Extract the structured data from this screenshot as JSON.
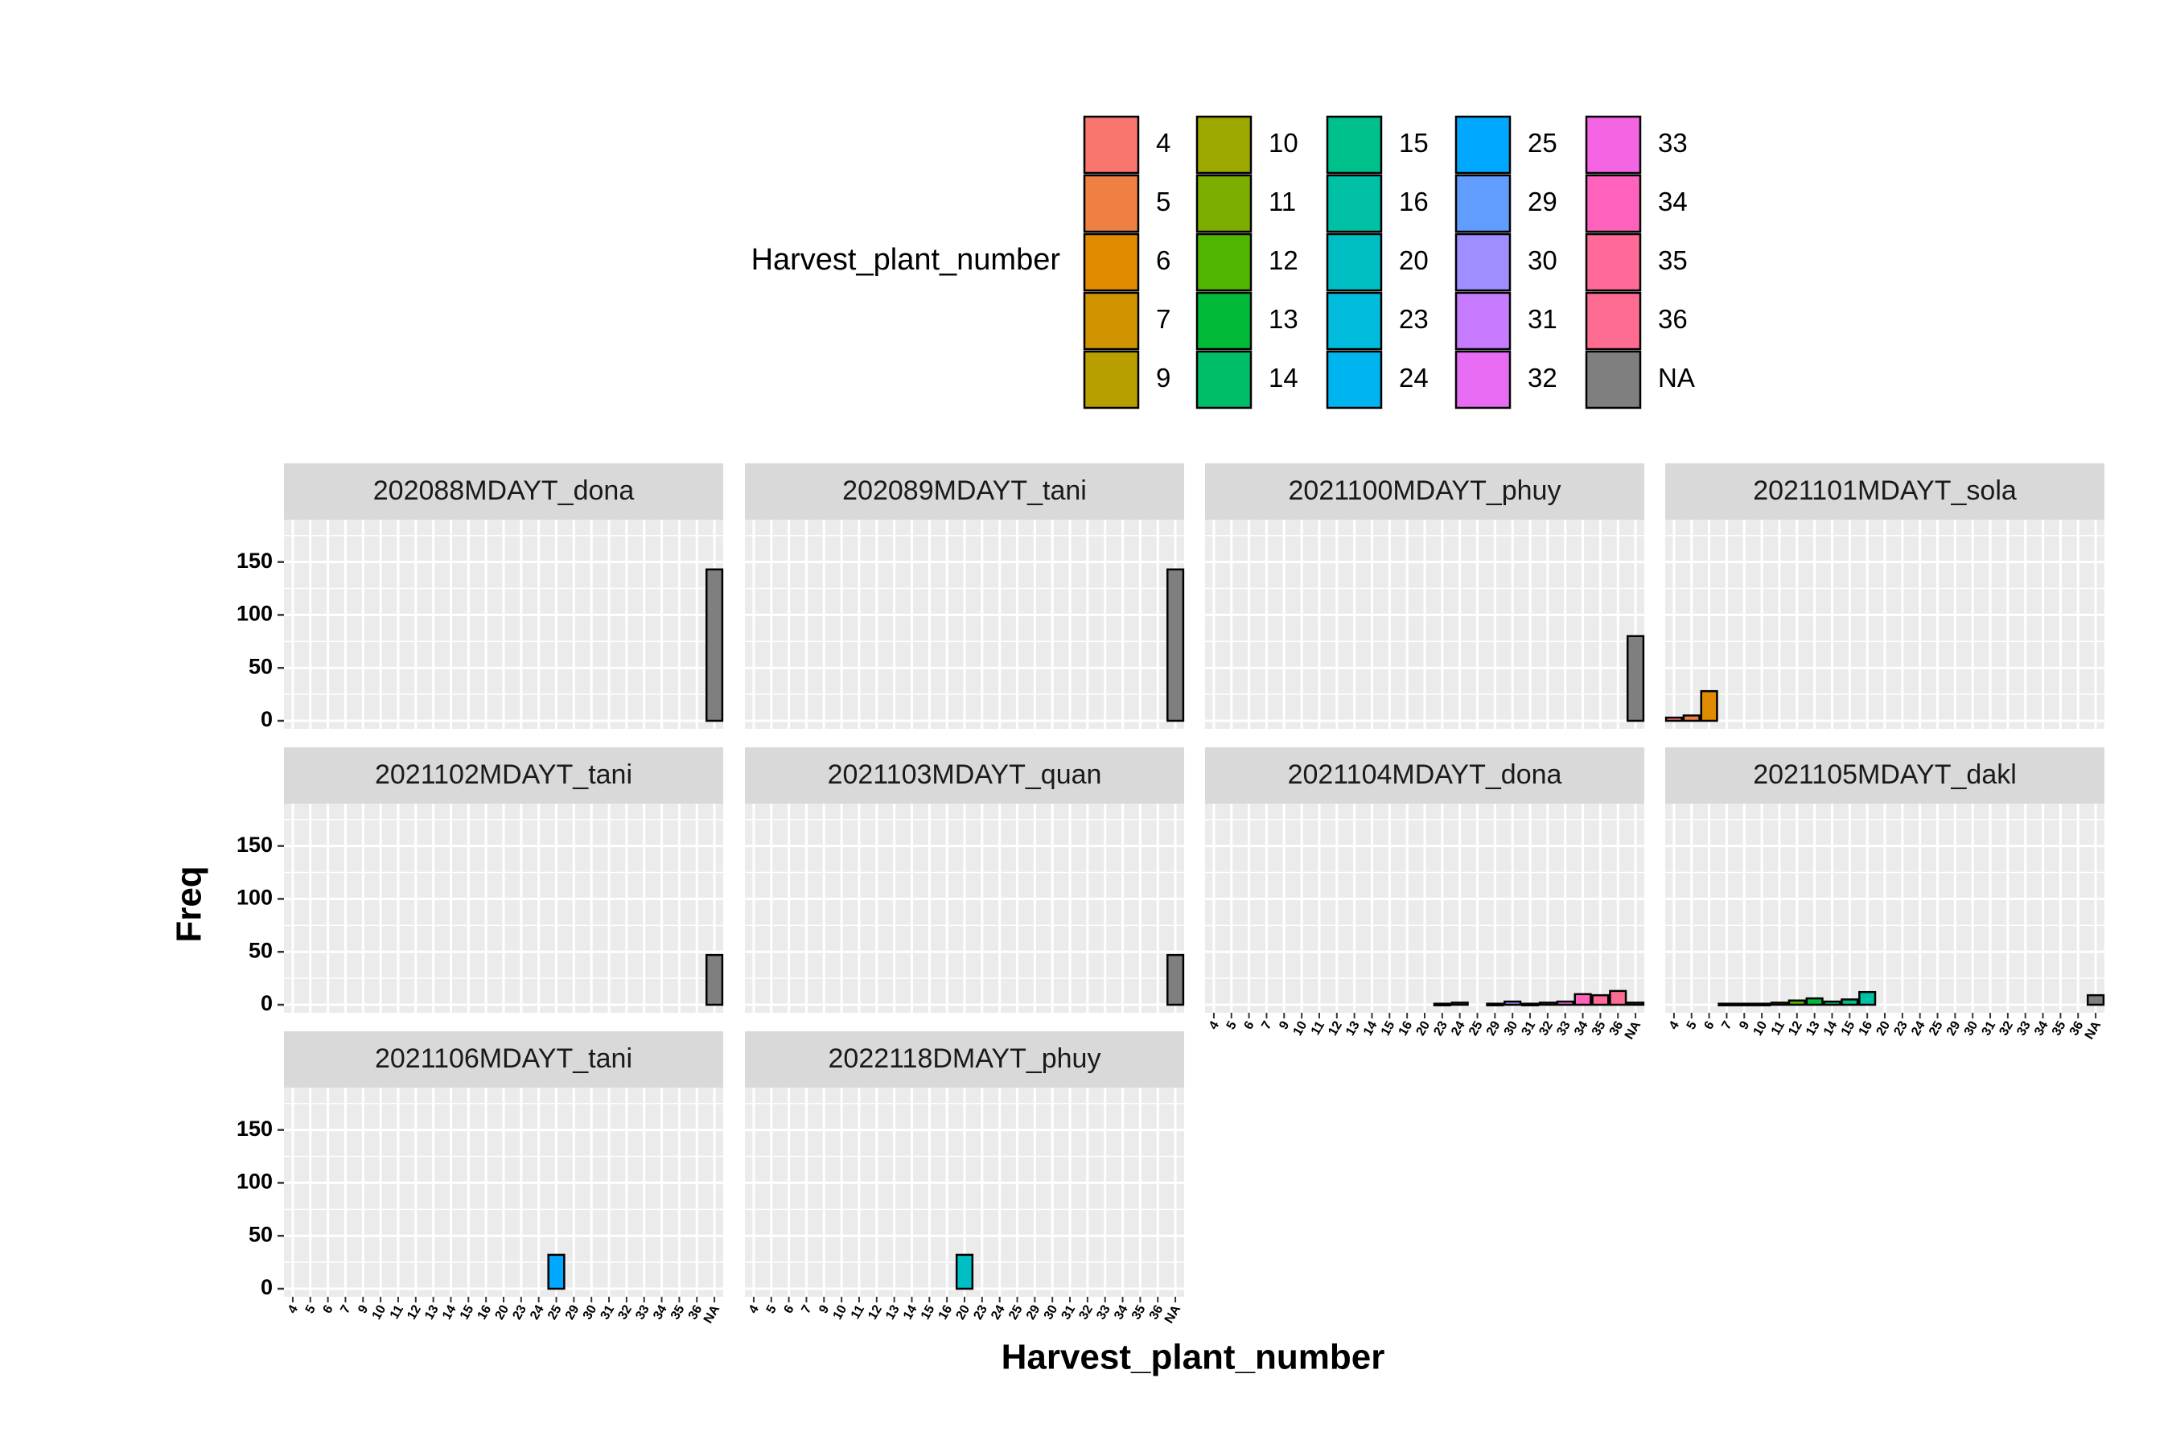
{
  "chart_data": {
    "type": "bar",
    "title": "",
    "xlabel": "Harvest_plant_number",
    "ylabel": "Freq",
    "ylim": [
      0,
      190
    ],
    "yticks": [
      0,
      50,
      100,
      150
    ],
    "grid": true,
    "legend_position": "top",
    "legend": {
      "title": "Harvest_plant_number",
      "columns": [
        [
          "4",
          "5",
          "6",
          "7",
          "9"
        ],
        [
          "10",
          "11",
          "12",
          "13",
          "14"
        ],
        [
          "15",
          "16",
          "20",
          "23",
          "24"
        ],
        [
          "25",
          "29",
          "30",
          "31",
          "32"
        ],
        [
          "33",
          "34",
          "35",
          "36",
          "NA"
        ]
      ]
    },
    "categories": [
      "4",
      "5",
      "6",
      "7",
      "9",
      "10",
      "11",
      "12",
      "13",
      "14",
      "15",
      "16",
      "20",
      "23",
      "24",
      "25",
      "29",
      "30",
      "31",
      "32",
      "33",
      "34",
      "35",
      "36",
      "NA"
    ],
    "colors": [
      "#F8766D",
      "#EE8043",
      "#E08B00",
      "#CF9400",
      "#B79F00",
      "#9CA700",
      "#7CAE00",
      "#4FB500",
      "#00BA38",
      "#00BE67",
      "#00C08B",
      "#00C1A5",
      "#00BFC4",
      "#00BBDC",
      "#00B4F0",
      "#00A9FF",
      "#619CFF",
      "#9E8EFF",
      "#C77CFF",
      "#E76BF3",
      "#F564E3",
      "#FF62BC",
      "#FF6A98",
      "#FF6C91",
      "#7F7F7F"
    ],
    "panels": [
      {
        "name": "202088MDAYT_dona",
        "show_x_axis": false,
        "values": [
          0,
          0,
          0,
          0,
          0,
          0,
          0,
          0,
          0,
          0,
          0,
          0,
          0,
          0,
          0,
          0,
          0,
          0,
          0,
          0,
          0,
          0,
          0,
          0,
          143
        ]
      },
      {
        "name": "202089MDAYT_tani",
        "show_x_axis": false,
        "values": [
          0,
          0,
          0,
          0,
          0,
          0,
          0,
          0,
          0,
          0,
          0,
          0,
          0,
          0,
          0,
          0,
          0,
          0,
          0,
          0,
          0,
          0,
          0,
          0,
          143
        ]
      },
      {
        "name": "2021100MDAYT_phuy",
        "show_x_axis": false,
        "values": [
          0,
          0,
          0,
          0,
          0,
          0,
          0,
          0,
          0,
          0,
          0,
          0,
          0,
          0,
          0,
          0,
          0,
          0,
          0,
          0,
          0,
          0,
          0,
          0,
          80
        ]
      },
      {
        "name": "2021101MDAYT_sola",
        "show_x_axis": false,
        "values": [
          3,
          5,
          28,
          0,
          0,
          0,
          0,
          0,
          0,
          0,
          0,
          0,
          0,
          0,
          0,
          0,
          0,
          0,
          0,
          0,
          0,
          0,
          0,
          0,
          0
        ]
      },
      {
        "name": "2021102MDAYT_tani",
        "show_x_axis": false,
        "values": [
          0,
          0,
          0,
          0,
          0,
          0,
          0,
          0,
          0,
          0,
          0,
          0,
          0,
          0,
          0,
          0,
          0,
          0,
          0,
          0,
          0,
          0,
          0,
          0,
          47
        ]
      },
      {
        "name": "2021103MDAYT_quan",
        "show_x_axis": false,
        "values": [
          0,
          0,
          0,
          0,
          0,
          0,
          0,
          0,
          0,
          0,
          0,
          0,
          0,
          0,
          0,
          0,
          0,
          0,
          0,
          0,
          0,
          0,
          0,
          0,
          47
        ]
      },
      {
        "name": "2021104MDAYT_dona",
        "show_x_axis": true,
        "values": [
          0,
          0,
          0,
          0,
          0,
          0,
          0,
          0,
          0,
          0,
          0,
          0,
          0,
          1,
          2,
          0,
          1,
          3,
          1,
          2,
          3,
          10,
          9,
          13,
          2
        ]
      },
      {
        "name": "2021105MDAYT_dakl",
        "show_x_axis": true,
        "values": [
          0,
          0,
          0,
          1,
          1,
          1,
          2,
          4,
          6,
          3,
          5,
          12,
          0,
          0,
          0,
          0,
          0,
          0,
          0,
          0,
          0,
          0,
          0,
          0,
          9
        ]
      },
      {
        "name": "2021106MDAYT_tani",
        "show_x_axis": true,
        "values": [
          0,
          0,
          0,
          0,
          0,
          0,
          0,
          0,
          0,
          0,
          0,
          0,
          0,
          0,
          0,
          32,
          0,
          0,
          0,
          0,
          0,
          0,
          0,
          0,
          0
        ]
      },
      {
        "name": "2022118DMAYT_phuy",
        "show_x_axis": true,
        "values": [
          0,
          0,
          0,
          0,
          0,
          0,
          0,
          0,
          0,
          0,
          0,
          0,
          32,
          0,
          0,
          0,
          0,
          0,
          0,
          0,
          0,
          0,
          0,
          0,
          0
        ]
      }
    ]
  }
}
